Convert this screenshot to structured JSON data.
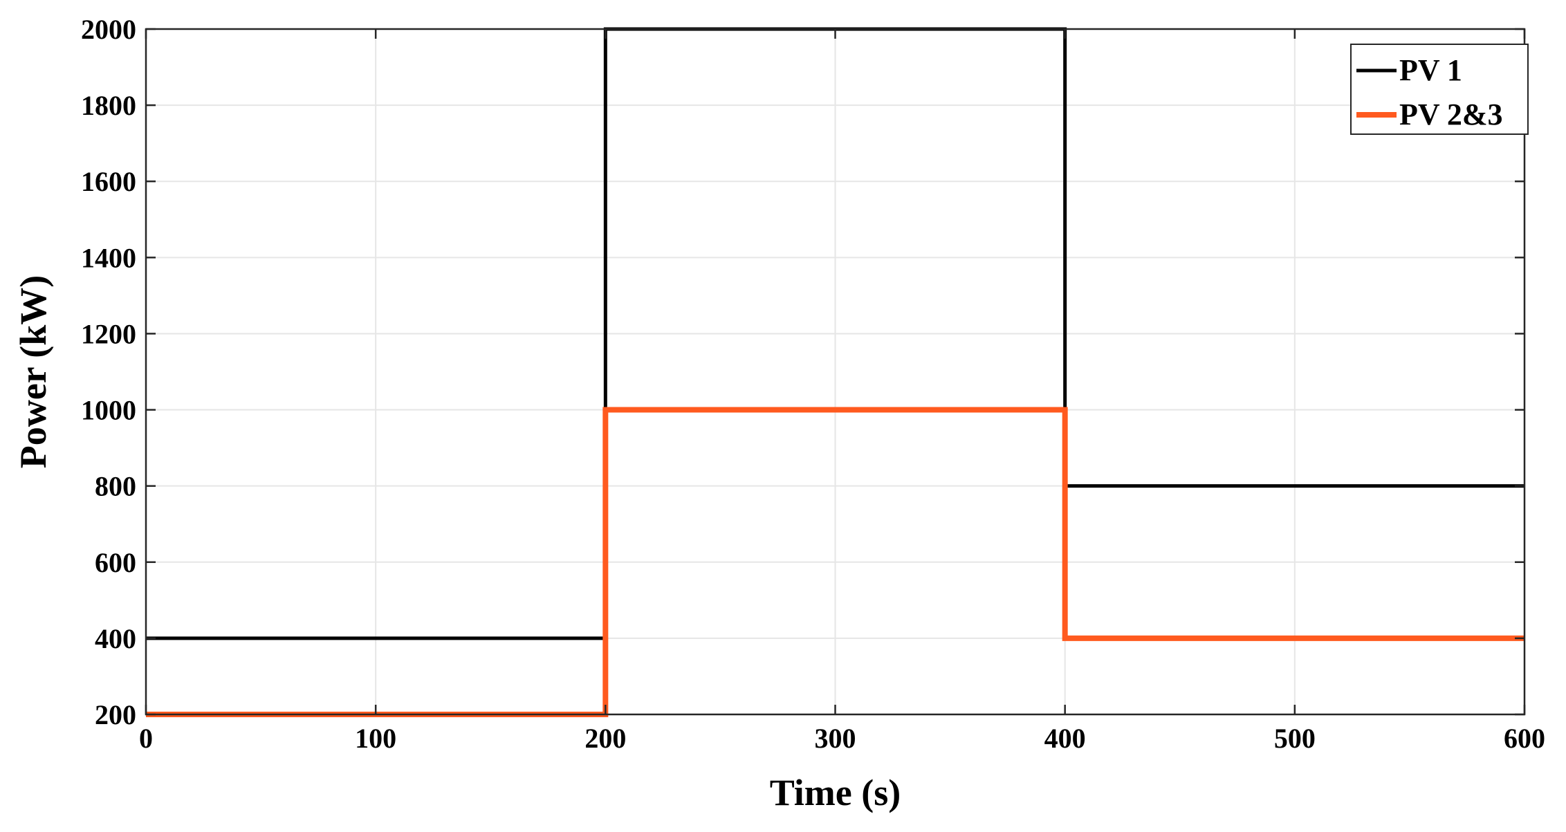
{
  "chart_data": {
    "type": "line",
    "xlabel": "Time (s)",
    "ylabel": "Power (kW)",
    "xlim": [
      0,
      600
    ],
    "ylim": [
      200,
      2000
    ],
    "xticks": [
      0,
      100,
      200,
      300,
      400,
      500,
      600
    ],
    "yticks": [
      200,
      400,
      600,
      800,
      1000,
      1200,
      1400,
      1600,
      1800,
      2000
    ],
    "grid": true,
    "step": true,
    "legend_position": "top-right",
    "series": [
      {
        "name": "PV 1",
        "color": "#000000",
        "x": [
          0,
          200,
          200,
          400,
          400,
          600
        ],
        "y": [
          400,
          400,
          2000,
          2000,
          800,
          800
        ]
      },
      {
        "name": "PV 2&3",
        "color": "#ff5a1f",
        "x": [
          0,
          200,
          200,
          400,
          400,
          600
        ],
        "y": [
          200,
          200,
          1000,
          1000,
          400,
          400
        ]
      }
    ]
  }
}
